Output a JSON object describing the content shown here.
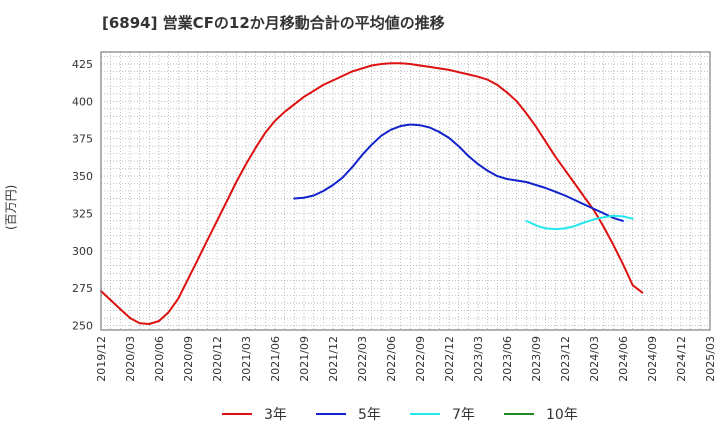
{
  "chart_data": {
    "type": "line",
    "title": "[6894]  営業CFの12か月移動合計の平均値の推移",
    "ylabel": "(百万円)",
    "xlabel": "",
    "ylim": [
      247,
      433
    ],
    "yticks": [
      250,
      275,
      300,
      325,
      350,
      375,
      400,
      425
    ],
    "xticks": [
      "2019/12",
      "2020/03",
      "2020/06",
      "2020/09",
      "2020/12",
      "2021/03",
      "2021/06",
      "2021/09",
      "2021/12",
      "2022/03",
      "2022/06",
      "2022/09",
      "2022/12",
      "2023/03",
      "2023/06",
      "2023/09",
      "2023/12",
      "2024/03",
      "2024/06",
      "2024/09",
      "2024/12",
      "2025/03"
    ],
    "grid": true,
    "legend_position": "bottom",
    "series": [
      {
        "name": "3年",
        "color": "#dd1111",
        "points": [
          [
            "2019/12",
            273
          ],
          [
            "2020/01",
            267
          ],
          [
            "2020/02",
            261
          ],
          [
            "2020/03",
            255
          ],
          [
            "2020/04",
            251.5
          ],
          [
            "2020/05",
            251
          ],
          [
            "2020/06",
            253
          ],
          [
            "2020/07",
            259
          ],
          [
            "2020/08",
            268
          ],
          [
            "2020/09",
            281
          ],
          [
            "2020/10",
            294
          ],
          [
            "2020/11",
            307
          ],
          [
            "2020/12",
            320
          ],
          [
            "2021/01",
            333
          ],
          [
            "2021/02",
            346
          ],
          [
            "2021/03",
            358
          ],
          [
            "2021/04",
            369
          ],
          [
            "2021/05",
            379
          ],
          [
            "2021/06",
            387
          ],
          [
            "2021/07",
            393
          ],
          [
            "2021/08",
            398
          ],
          [
            "2021/09",
            403
          ],
          [
            "2021/10",
            407
          ],
          [
            "2021/11",
            411
          ],
          [
            "2021/12",
            414
          ],
          [
            "2022/01",
            417
          ],
          [
            "2022/02",
            420
          ],
          [
            "2022/03",
            422
          ],
          [
            "2022/04",
            424
          ],
          [
            "2022/05",
            425
          ],
          [
            "2022/06",
            425.5
          ],
          [
            "2022/07",
            425.5
          ],
          [
            "2022/08",
            425
          ],
          [
            "2022/09",
            424
          ],
          [
            "2022/10",
            423
          ],
          [
            "2022/11",
            422
          ],
          [
            "2022/12",
            421
          ],
          [
            "2023/01",
            419.5
          ],
          [
            "2023/02",
            418
          ],
          [
            "2023/03",
            416.5
          ],
          [
            "2023/04",
            414.5
          ],
          [
            "2023/05",
            411
          ],
          [
            "2023/06",
            406
          ],
          [
            "2023/07",
            400
          ],
          [
            "2023/08",
            392
          ],
          [
            "2023/09",
            383
          ],
          [
            "2023/10",
            373
          ],
          [
            "2023/11",
            363
          ],
          [
            "2023/12",
            354
          ],
          [
            "2024/01",
            345
          ],
          [
            "2024/02",
            336
          ],
          [
            "2024/03",
            327
          ],
          [
            "2024/04",
            316
          ],
          [
            "2024/05",
            304
          ],
          [
            "2024/06",
            291
          ],
          [
            "2024/07",
            277
          ],
          [
            "2024/08",
            272
          ]
        ]
      },
      {
        "name": "5年",
        "color": "#1122cc",
        "points": [
          [
            "2021/08",
            335
          ],
          [
            "2021/09",
            335.5
          ],
          [
            "2021/10",
            337
          ],
          [
            "2021/11",
            340
          ],
          [
            "2021/12",
            344
          ],
          [
            "2022/01",
            349
          ],
          [
            "2022/02",
            356
          ],
          [
            "2022/03",
            364
          ],
          [
            "2022/04",
            371
          ],
          [
            "2022/05",
            377
          ],
          [
            "2022/06",
            381
          ],
          [
            "2022/07",
            383.5
          ],
          [
            "2022/08",
            384.5
          ],
          [
            "2022/09",
            384
          ],
          [
            "2022/10",
            382.5
          ],
          [
            "2022/11",
            379.5
          ],
          [
            "2022/12",
            375.5
          ],
          [
            "2023/01",
            370
          ],
          [
            "2023/02",
            363.5
          ],
          [
            "2023/03",
            358
          ],
          [
            "2023/04",
            353.5
          ],
          [
            "2023/05",
            350
          ],
          [
            "2023/06",
            348
          ],
          [
            "2023/07",
            347
          ],
          [
            "2023/08",
            346
          ],
          [
            "2023/09",
            344
          ],
          [
            "2023/10",
            342
          ],
          [
            "2023/11",
            339.5
          ],
          [
            "2023/12",
            337
          ],
          [
            "2024/01",
            334
          ],
          [
            "2024/02",
            331
          ],
          [
            "2024/03",
            328
          ],
          [
            "2024/04",
            325
          ],
          [
            "2024/05",
            322
          ],
          [
            "2024/06",
            320
          ]
        ]
      },
      {
        "name": "7年",
        "color": "#22e8ee",
        "points": [
          [
            "2023/08",
            320
          ],
          [
            "2023/09",
            317
          ],
          [
            "2023/10",
            315
          ],
          [
            "2023/11",
            314.5
          ],
          [
            "2023/12",
            315
          ],
          [
            "2024/01",
            316.5
          ],
          [
            "2024/02",
            319
          ],
          [
            "2024/03",
            321
          ],
          [
            "2024/04",
            322.5
          ],
          [
            "2024/05",
            323.5
          ],
          [
            "2024/06",
            323
          ],
          [
            "2024/07",
            321.5
          ]
        ]
      },
      {
        "name": "10年",
        "color": "#228822",
        "points": []
      }
    ]
  }
}
